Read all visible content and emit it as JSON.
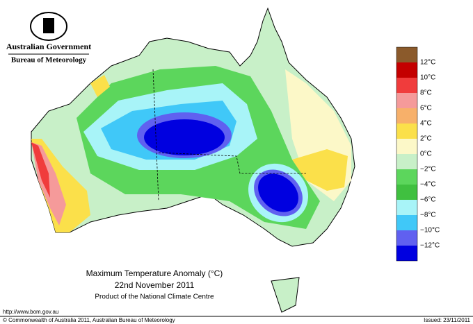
{
  "header": {
    "government": "Australian Government",
    "agency": "Bureau of Meteorology"
  },
  "title": {
    "line1": "Maximum Temperature Anomaly (°C)",
    "line2": "22nd November 2011",
    "line3": "Product of the National Climate Centre"
  },
  "legend": {
    "colors": [
      "#8b5a2b",
      "#c40000",
      "#f03c3c",
      "#f59a9a",
      "#f7b06a",
      "#fbe04a",
      "#fcf8c8",
      "#c8f0c8",
      "#5cd65c",
      "#40c040",
      "#a8f4f8",
      "#40c8f8",
      "#6060f0",
      "#0000e0"
    ],
    "labels": [
      "12°C",
      "10°C",
      "8°C",
      "6°C",
      "4°C",
      "2°C",
      "0°C",
      "−2°C",
      "−4°C",
      "−6°C",
      "−8°C",
      "−10°C",
      "−12°C"
    ]
  },
  "footer": {
    "url": "http://www.bom.gov.au",
    "copyright": "© Commonwealth of Australia 2011, Australian Bureau of Meteorology",
    "issued": "Issued: 23/11/2011"
  }
}
